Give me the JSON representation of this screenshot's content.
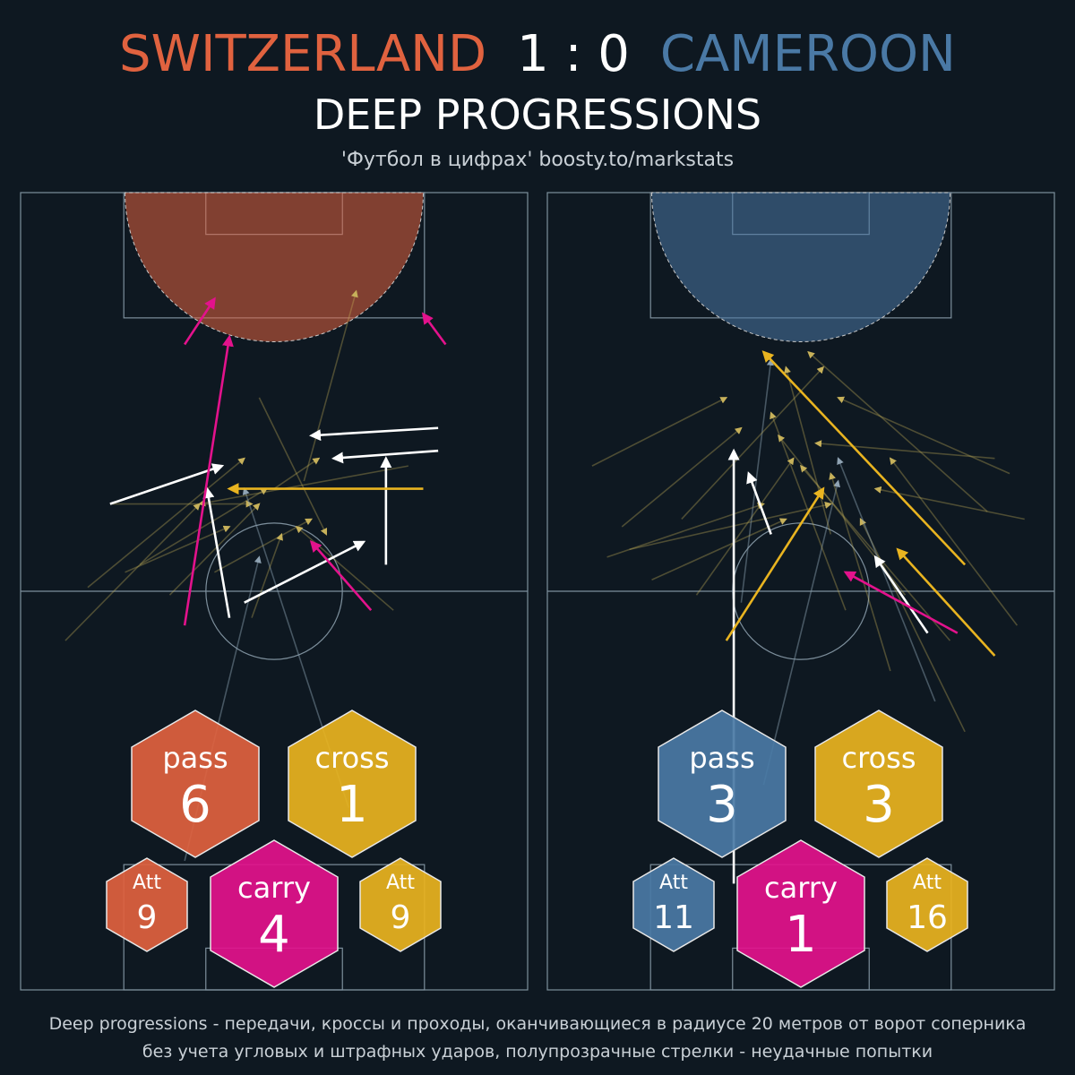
{
  "header": {
    "home_team": "SWITZERLAND",
    "score": "1 : 0",
    "away_team": "CAMEROON",
    "title": "DEEP PROGRESSIONS",
    "credit": "'Футбол в цифрах' boosty.to/markstats"
  },
  "colors": {
    "background": "#0e1821",
    "home": "#e0623f",
    "away": "#4a79a5",
    "pass_success": "#ffffff",
    "cross_success": "#e9b420",
    "carry_success": "#e3128c",
    "failed_arrow": "#c7b15a"
  },
  "chart_data": [
    {
      "type": "scatter",
      "team": "SWITZERLAND",
      "title": "",
      "stats": {
        "pass": {
          "label": "pass",
          "value": 6
        },
        "cross": {
          "label": "cross",
          "value": 1
        },
        "carry": {
          "label": "carry",
          "value": 4
        },
        "pass_attempts": {
          "label": "Att",
          "value": 9
        },
        "cross_attempts": {
          "label": "Att",
          "value": 9
        }
      },
      "successful_arrows": [
        {
          "kind": "pass",
          "from": [
            -22,
            64
          ],
          "to": [
            -7,
            69
          ]
        },
        {
          "kind": "pass",
          "from": [
            22,
            74
          ],
          "to": [
            5,
            73
          ]
        },
        {
          "kind": "pass",
          "from": [
            15,
            56
          ],
          "to": [
            15,
            70
          ]
        },
        {
          "kind": "pass",
          "from": [
            -6,
            49
          ],
          "to": [
            -9,
            66
          ]
        },
        {
          "kind": "pass",
          "from": [
            -4,
            51
          ],
          "to": [
            12,
            59
          ]
        },
        {
          "kind": "pass",
          "from": [
            22,
            71
          ],
          "to": [
            8,
            70
          ]
        },
        {
          "kind": "cross",
          "from": [
            20,
            66
          ],
          "to": [
            -6,
            66
          ]
        },
        {
          "kind": "carry",
          "from": [
            -12,
            85
          ],
          "to": [
            -8,
            91
          ]
        },
        {
          "kind": "carry",
          "from": [
            -12,
            48
          ],
          "to": [
            -6,
            86
          ]
        },
        {
          "kind": "carry",
          "from": [
            13,
            50
          ],
          "to": [
            5,
            59
          ]
        },
        {
          "kind": "carry",
          "from": [
            23,
            85
          ],
          "to": [
            20,
            89
          ]
        }
      ],
      "failed_arrows": [
        {
          "from": [
            -25,
            53
          ],
          "to": [
            -4,
            70
          ]
        },
        {
          "from": [
            -18,
            56
          ],
          "to": [
            -1,
            66
          ]
        },
        {
          "from": [
            -22,
            64
          ],
          "to": [
            -3,
            64
          ]
        },
        {
          "from": [
            -20,
            55
          ],
          "to": [
            -6,
            61
          ]
        },
        {
          "from": [
            16,
            50
          ],
          "to": [
            3,
            61
          ]
        },
        {
          "from": [
            -12,
            17
          ],
          "to": [
            -2,
            57
          ]
        },
        {
          "from": [
            10,
            24
          ],
          "to": [
            -4,
            66
          ]
        },
        {
          "from": [
            -3,
            49
          ],
          "to": [
            1,
            60
          ]
        },
        {
          "from": [
            -8,
            55
          ],
          "to": [
            5,
            62
          ]
        },
        {
          "from": [
            -14,
            52
          ],
          "to": [
            -2,
            64
          ]
        },
        {
          "from": [
            0,
            66
          ],
          "to": [
            6,
            70
          ]
        },
        {
          "from": [
            4,
            67
          ],
          "to": [
            11,
            92
          ]
        },
        {
          "from": [
            -28,
            46
          ],
          "to": [
            -10,
            64
          ]
        },
        {
          "from": [
            18,
            69
          ],
          "to": [
            -10,
            64
          ]
        },
        {
          "from": [
            -2,
            78
          ],
          "to": [
            7,
            60
          ]
        }
      ]
    },
    {
      "type": "scatter",
      "team": "CAMEROON",
      "title": "",
      "stats": {
        "pass": {
          "label": "pass",
          "value": 3
        },
        "cross": {
          "label": "cross",
          "value": 3
        },
        "carry": {
          "label": "carry",
          "value": 1
        },
        "pass_attempts": {
          "label": "Att",
          "value": 11
        },
        "cross_attempts": {
          "label": "Att",
          "value": 16
        }
      },
      "successful_arrows": [
        {
          "kind": "pass",
          "from": [
            -9,
            14
          ],
          "to": [
            -9,
            71
          ]
        },
        {
          "kind": "pass",
          "from": [
            -4,
            60
          ],
          "to": [
            -7,
            68
          ]
        },
        {
          "kind": "pass",
          "from": [
            17,
            47
          ],
          "to": [
            10,
            57
          ]
        },
        {
          "kind": "cross",
          "from": [
            -10,
            46
          ],
          "to": [
            3,
            66
          ]
        },
        {
          "kind": "cross",
          "from": [
            22,
            56
          ],
          "to": [
            -5,
            84
          ]
        },
        {
          "kind": "cross",
          "from": [
            26,
            44
          ],
          "to": [
            13,
            58
          ]
        },
        {
          "kind": "carry",
          "from": [
            21,
            47
          ],
          "to": [
            6,
            55
          ]
        }
      ],
      "failed_arrows": [
        {
          "from": [
            -26,
            57
          ],
          "to": [
            -5,
            64
          ]
        },
        {
          "from": [
            -23,
            58
          ],
          "to": [
            4,
            64
          ]
        },
        {
          "from": [
            -28,
            69
          ],
          "to": [
            -10,
            78
          ]
        },
        {
          "from": [
            -8,
            51
          ],
          "to": [
            -4,
            83
          ]
        },
        {
          "from": [
            -5,
            27
          ],
          "to": [
            5,
            67
          ]
        },
        {
          "from": [
            25,
            63
          ],
          "to": [
            1,
            84
          ]
        },
        {
          "from": [
            28,
            68
          ],
          "to": [
            5,
            78
          ]
        },
        {
          "from": [
            14,
            52
          ],
          "to": [
            -3,
            73
          ]
        },
        {
          "from": [
            20,
            46
          ],
          "to": [
            0,
            69
          ]
        },
        {
          "from": [
            -20,
            54
          ],
          "to": [
            -2,
            62
          ]
        },
        {
          "from": [
            30,
            62
          ],
          "to": [
            10,
            66
          ]
        },
        {
          "from": [
            26,
            70
          ],
          "to": [
            2,
            72
          ]
        },
        {
          "from": [
            -24,
            61
          ],
          "to": [
            -8,
            74
          ]
        },
        {
          "from": [
            12,
            42
          ],
          "to": [
            4,
            68
          ]
        },
        {
          "from": [
            22,
            34
          ],
          "to": [
            8,
            62
          ]
        },
        {
          "from": [
            -16,
            62
          ],
          "to": [
            3,
            82
          ]
        },
        {
          "from": [
            6,
            50
          ],
          "to": [
            -4,
            76
          ]
        },
        {
          "from": [
            29,
            48
          ],
          "to": [
            12,
            70
          ]
        },
        {
          "from": [
            18,
            38
          ],
          "to": [
            5,
            70
          ]
        },
        {
          "from": [
            -14,
            52
          ],
          "to": [
            -1,
            70
          ]
        },
        {
          "from": [
            4,
            60
          ],
          "to": [
            -2,
            82
          ]
        }
      ]
    }
  ],
  "footer": {
    "line1": "Deep progressions - передачи, кроссы и проходы, оканчивающиеся в радиусе 20 метров от ворот соперника",
    "line2": "без учета угловых и штрафных ударов, полупрозрачные стрелки - неудачные попытки"
  }
}
